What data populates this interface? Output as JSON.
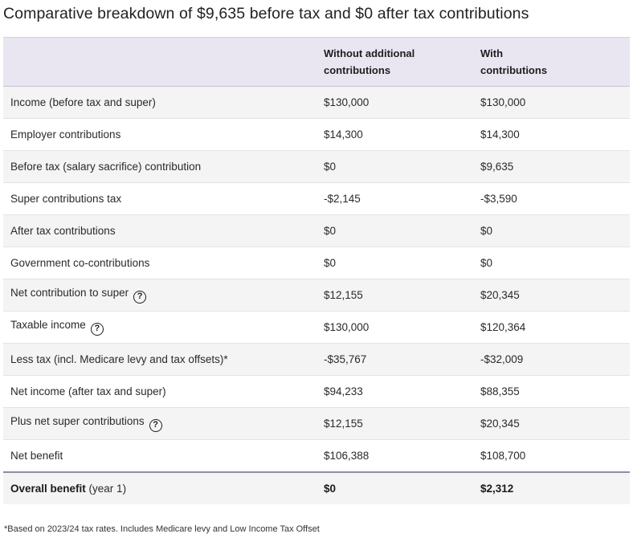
{
  "title": "Comparative breakdown of $9,635 before tax and $0 after tax contributions",
  "table": {
    "headers": {
      "label": "",
      "without_line1": "Without additional",
      "without_line2": "contributions",
      "with_line1": "With",
      "with_line2": "contributions"
    },
    "rows": [
      {
        "label": "Income (before tax and super)",
        "without": "$130,000",
        "with": "$130,000",
        "help": false
      },
      {
        "label": "Employer contributions",
        "without": "$14,300",
        "with": "$14,300",
        "help": false
      },
      {
        "label": "Before tax (salary sacrifice) contribution",
        "without": "$0",
        "with": "$9,635",
        "help": false
      },
      {
        "label": "Super contributions tax",
        "without": "-$2,145",
        "with": "-$3,590",
        "help": false
      },
      {
        "label": "After tax contributions",
        "without": "$0",
        "with": "$0",
        "help": false
      },
      {
        "label": "Government co-contributions",
        "without": "$0",
        "with": "$0",
        "help": false
      },
      {
        "label": "Net contribution to super",
        "without": "$12,155",
        "with": "$20,345",
        "help": true
      },
      {
        "label": "Taxable income",
        "without": "$130,000",
        "with": "$120,364",
        "help": true
      },
      {
        "label": "Less tax (incl. Medicare levy and tax offsets)*",
        "without": "-$35,767",
        "with": "-$32,009",
        "help": false
      },
      {
        "label": "Net income (after tax and super)",
        "without": "$94,233",
        "with": "$88,355",
        "help": false
      },
      {
        "label": "Plus net super contributions",
        "without": "$12,155",
        "with": "$20,345",
        "help": true
      },
      {
        "label": "Net benefit",
        "without": "$106,388",
        "with": "$108,700",
        "help": false
      }
    ],
    "total": {
      "label_bold": "Overall benefit",
      "label_suffix": " (year 1)",
      "without": "$0",
      "with": "$2,312"
    }
  },
  "help_glyph": "?",
  "footnote": "*Based on 2023/24 tax rates. Includes Medicare levy and Low Income Tax Offset",
  "colors": {
    "header_bg": "#e9e5f1",
    "row_shade": "#f4f4f4",
    "total_divider": "#8e8da6"
  },
  "icons": {
    "help": "question-circle-icon"
  }
}
